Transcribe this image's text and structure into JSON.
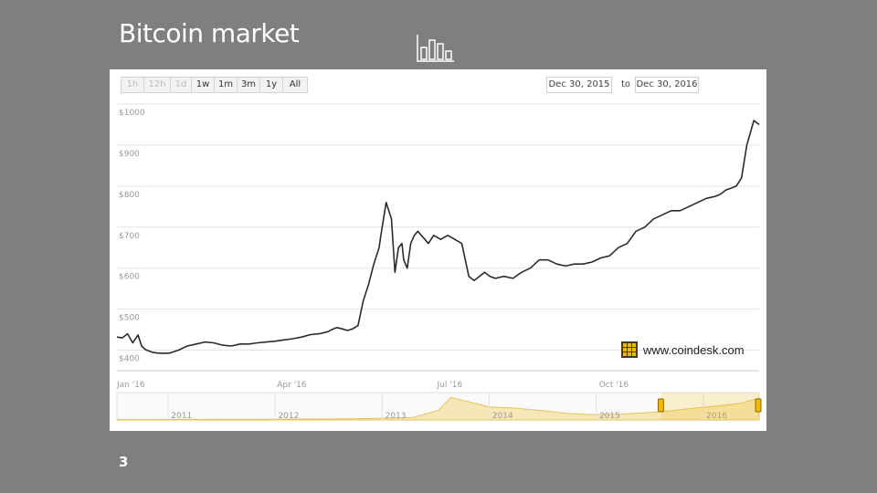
{
  "slide": {
    "title": "Bitcoin market",
    "number": "3",
    "icon": "bar-chart-icon"
  },
  "chart_header": {
    "ranges": [
      "1h",
      "12h",
      "1d",
      "1w",
      "1m",
      "3m",
      "1y",
      "All"
    ],
    "dim_ranges": [
      "1h",
      "12h",
      "1d"
    ],
    "date_from": "Dec 30, 2015",
    "to_label": "to",
    "date_to": "Dec 30, 2016"
  },
  "watermark": {
    "text": "www.coindesk.com",
    "accent": "#f2b705"
  },
  "chart_data": {
    "type": "line",
    "title": "",
    "xlabel": "",
    "ylabel": "",
    "ylim": [
      350,
      1000
    ],
    "yticks": [
      {
        "value": 1000,
        "label": "$1000"
      },
      {
        "value": 900,
        "label": "$900"
      },
      {
        "value": 800,
        "label": "$800"
      },
      {
        "value": 700,
        "label": "$700"
      },
      {
        "value": 600,
        "label": "$600"
      },
      {
        "value": 500,
        "label": "$500"
      },
      {
        "value": 400,
        "label": "$400"
      }
    ],
    "xticks": [
      {
        "t": 0,
        "label": "Jan '16"
      },
      {
        "t": 91,
        "label": "Apr '16"
      },
      {
        "t": 182,
        "label": "Jul '16"
      },
      {
        "t": 274,
        "label": "Oct '16"
      }
    ],
    "xlim": [
      0,
      365
    ],
    "grid": true,
    "line_color": "#2b2b2b",
    "series": [
      {
        "x": [
          0,
          3,
          6,
          9,
          12,
          14,
          16,
          18,
          20,
          23,
          26,
          30,
          35,
          40,
          45,
          50,
          55,
          60,
          65,
          70,
          75,
          80,
          85,
          90,
          95,
          100,
          105,
          110,
          115,
          120,
          122,
          125,
          128,
          131,
          134,
          137,
          140,
          143,
          146,
          149,
          150,
          153,
          156,
          158,
          160,
          162,
          163,
          165,
          167,
          169,
          171,
          173,
          175,
          177,
          180,
          184,
          188,
          192,
          196,
          200,
          203,
          206,
          209,
          212,
          215,
          220,
          225,
          230,
          235,
          240,
          245,
          250,
          255,
          260,
          265,
          270,
          275,
          280,
          285,
          290,
          295,
          300,
          305,
          310,
          315,
          320,
          325,
          330,
          335,
          340,
          343,
          346,
          349,
          352,
          355,
          358,
          360,
          362,
          365
        ],
        "values": [
          432,
          430,
          440,
          418,
          437,
          410,
          402,
          398,
          395,
          393,
          392,
          393,
          400,
          410,
          415,
          420,
          418,
          412,
          410,
          415,
          415,
          418,
          420,
          422,
          425,
          428,
          432,
          438,
          440,
          445,
          450,
          455,
          452,
          448,
          452,
          460,
          520,
          560,
          610,
          650,
          680,
          760,
          720,
          590,
          650,
          660,
          620,
          600,
          660,
          680,
          690,
          680,
          670,
          660,
          680,
          670,
          680,
          670,
          660,
          580,
          570,
          580,
          590,
          580,
          575,
          580,
          575,
          590,
          600,
          620,
          620,
          610,
          605,
          610,
          610,
          615,
          625,
          630,
          650,
          660,
          690,
          700,
          720,
          730,
          740,
          740,
          750,
          760,
          770,
          775,
          780,
          790,
          795,
          800,
          820,
          900,
          930,
          960,
          950
        ]
      }
    ]
  },
  "navigator_data": {
    "type": "area",
    "years": [
      "2011",
      "2012",
      "2013",
      "2014",
      "2015",
      "2016"
    ],
    "x": [
      0,
      0.08,
      0.16,
      0.24,
      0.32,
      0.4,
      0.46,
      0.5,
      0.52,
      0.55,
      0.58,
      0.62,
      0.66,
      0.7,
      0.74,
      0.78,
      0.82,
      0.86,
      0.9,
      0.94,
      0.97,
      1.0
    ],
    "values": [
      0.02,
      0.02,
      0.03,
      0.03,
      0.04,
      0.06,
      0.1,
      0.4,
      0.95,
      0.75,
      0.55,
      0.5,
      0.4,
      0.28,
      0.22,
      0.24,
      0.3,
      0.38,
      0.5,
      0.6,
      0.7,
      0.92
    ],
    "selection": [
      0.847,
      1.0
    ]
  }
}
